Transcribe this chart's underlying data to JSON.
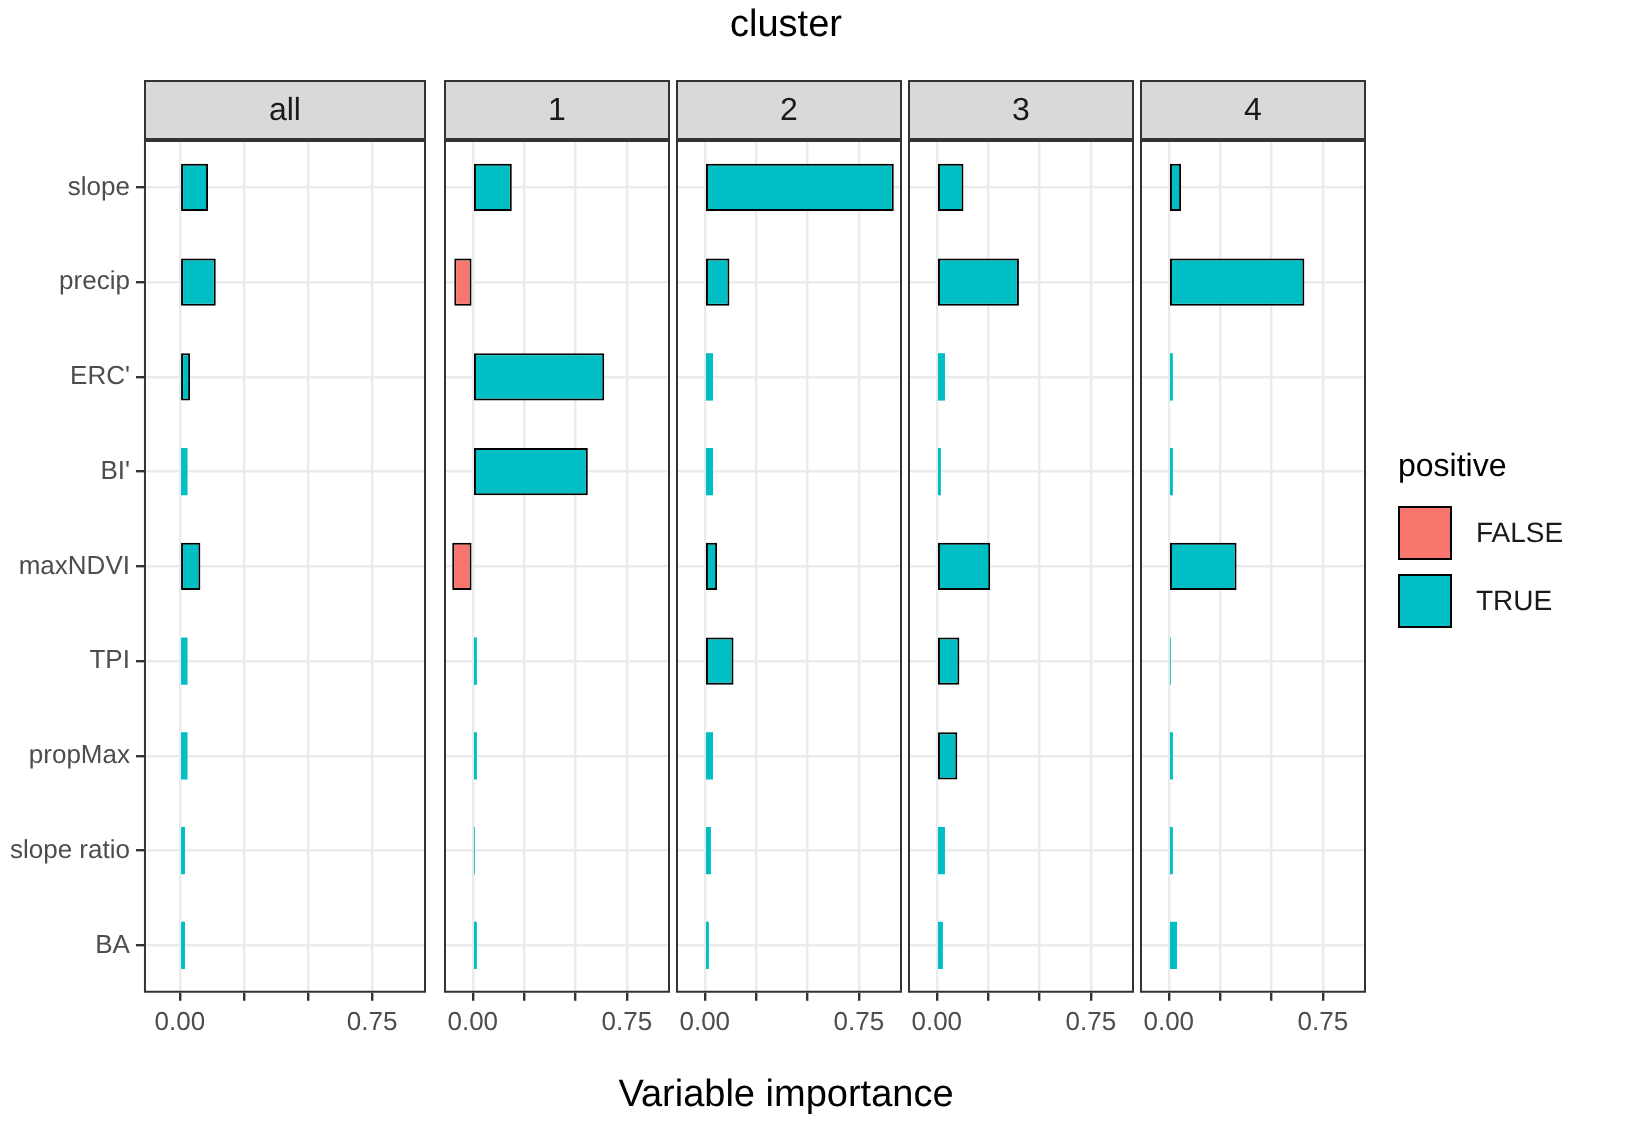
{
  "chart_data": [
    {
      "type": "bar",
      "orientation": "horizontal",
      "title": "all",
      "annotations": [
        "cluster"
      ],
      "xlabel": "Variable importance",
      "grid": true,
      "categories": [
        "slope",
        "precip",
        "ERC'",
        "BI'",
        "maxNDVI",
        "TPI",
        "propMax",
        "slope ratio",
        "BA"
      ],
      "series": [
        {
          "color": "#f8766d",
          "values": [
            null,
            null,
            null,
            null,
            null,
            null,
            null,
            null,
            null
          ]
        },
        {
          "color": "#00bfc4",
          "values": [
            0.11,
            0.14,
            0.04,
            0.03,
            0.08,
            0.03,
            0.03,
            0.02,
            0.02
          ]
        }
      ],
      "xlim": [
        -0.14,
        0.96
      ],
      "xticks": [
        {
          "value": 0,
          "label": "0.00"
        },
        {
          "value": 0.25,
          "label": null
        },
        {
          "value": 0.5,
          "label": null
        },
        {
          "value": 0.75,
          "label": "0.75"
        }
      ]
    },
    {
      "type": "bar",
      "orientation": "horizontal",
      "title": "1",
      "grid": true,
      "tick_labels": "x",
      "categories": [
        null,
        null,
        null,
        null,
        null,
        null,
        null,
        null,
        null
      ],
      "series": [
        {
          "color": "#f8766d",
          "values": [
            null,
            -0.09,
            null,
            null,
            -0.1,
            null,
            null,
            null,
            null
          ]
        },
        {
          "color": "#00bfc4",
          "values": [
            0.19,
            null,
            0.64,
            0.56,
            null,
            0.02,
            0.02,
            0.01,
            0.02
          ]
        }
      ],
      "xlim": [
        -0.14,
        0.96
      ],
      "xticks": [
        {
          "value": 0,
          "label": "0.00"
        },
        {
          "value": 0.25,
          "label": null
        },
        {
          "value": 0.5,
          "label": null
        },
        {
          "value": 0.75,
          "label": "0.75"
        }
      ]
    },
    {
      "type": "bar",
      "orientation": "horizontal",
      "title": "2",
      "grid": true,
      "tick_labels": "x",
      "categories": [
        null,
        null,
        null,
        null,
        null,
        null,
        null,
        null,
        null
      ],
      "series": [
        {
          "color": "#f8766d",
          "values": [
            null,
            null,
            null,
            null,
            null,
            null,
            null,
            null,
            null
          ]
        },
        {
          "color": "#00bfc4",
          "values": [
            0.92,
            0.12,
            0.04,
            0.04,
            0.06,
            0.14,
            0.04,
            0.03,
            0.02
          ]
        }
      ],
      "xlim": [
        -0.14,
        0.96
      ],
      "xticks": [
        {
          "value": 0,
          "label": "0.00"
        },
        {
          "value": 0.25,
          "label": null
        },
        {
          "value": 0.5,
          "label": null
        },
        {
          "value": 0.75,
          "label": "0.75"
        }
      ]
    },
    {
      "type": "bar",
      "orientation": "horizontal",
      "title": "3",
      "grid": true,
      "tick_labels": "x",
      "categories": [
        null,
        null,
        null,
        null,
        null,
        null,
        null,
        null,
        null
      ],
      "series": [
        {
          "color": "#f8766d",
          "values": [
            null,
            null,
            null,
            null,
            null,
            null,
            null,
            null,
            null
          ]
        },
        {
          "color": "#00bfc4",
          "values": [
            0.13,
            0.4,
            0.04,
            0.02,
            0.26,
            0.11,
            0.1,
            0.04,
            0.03
          ]
        }
      ],
      "xlim": [
        -0.14,
        0.96
      ],
      "xticks": [
        {
          "value": 0,
          "label": "0.00"
        },
        {
          "value": 0.25,
          "label": null
        },
        {
          "value": 0.5,
          "label": null
        },
        {
          "value": 0.75,
          "label": "0.75"
        }
      ]
    },
    {
      "type": "bar",
      "orientation": "horizontal",
      "title": "4",
      "grid": true,
      "tick_labels": "x",
      "legend": "right",
      "legend_title": "positive",
      "categories": [
        null,
        null,
        null,
        null,
        null,
        null,
        null,
        null,
        null
      ],
      "series": [
        {
          "name": "FALSE",
          "color": "#f8766d",
          "values": [
            null,
            null,
            null,
            null,
            null,
            null,
            null,
            null,
            null
          ]
        },
        {
          "name": "TRUE",
          "color": "#00bfc4",
          "values": [
            0.06,
            0.66,
            0.02,
            0.02,
            0.33,
            0.01,
            0.02,
            0.02,
            0.04
          ]
        }
      ],
      "xlim": [
        -0.14,
        0.96
      ],
      "xticks": [
        {
          "value": 0,
          "label": "0.00"
        },
        {
          "value": 0.25,
          "label": null
        },
        {
          "value": 0.5,
          "label": null
        },
        {
          "value": 0.75,
          "label": "0.75"
        }
      ]
    }
  ]
}
